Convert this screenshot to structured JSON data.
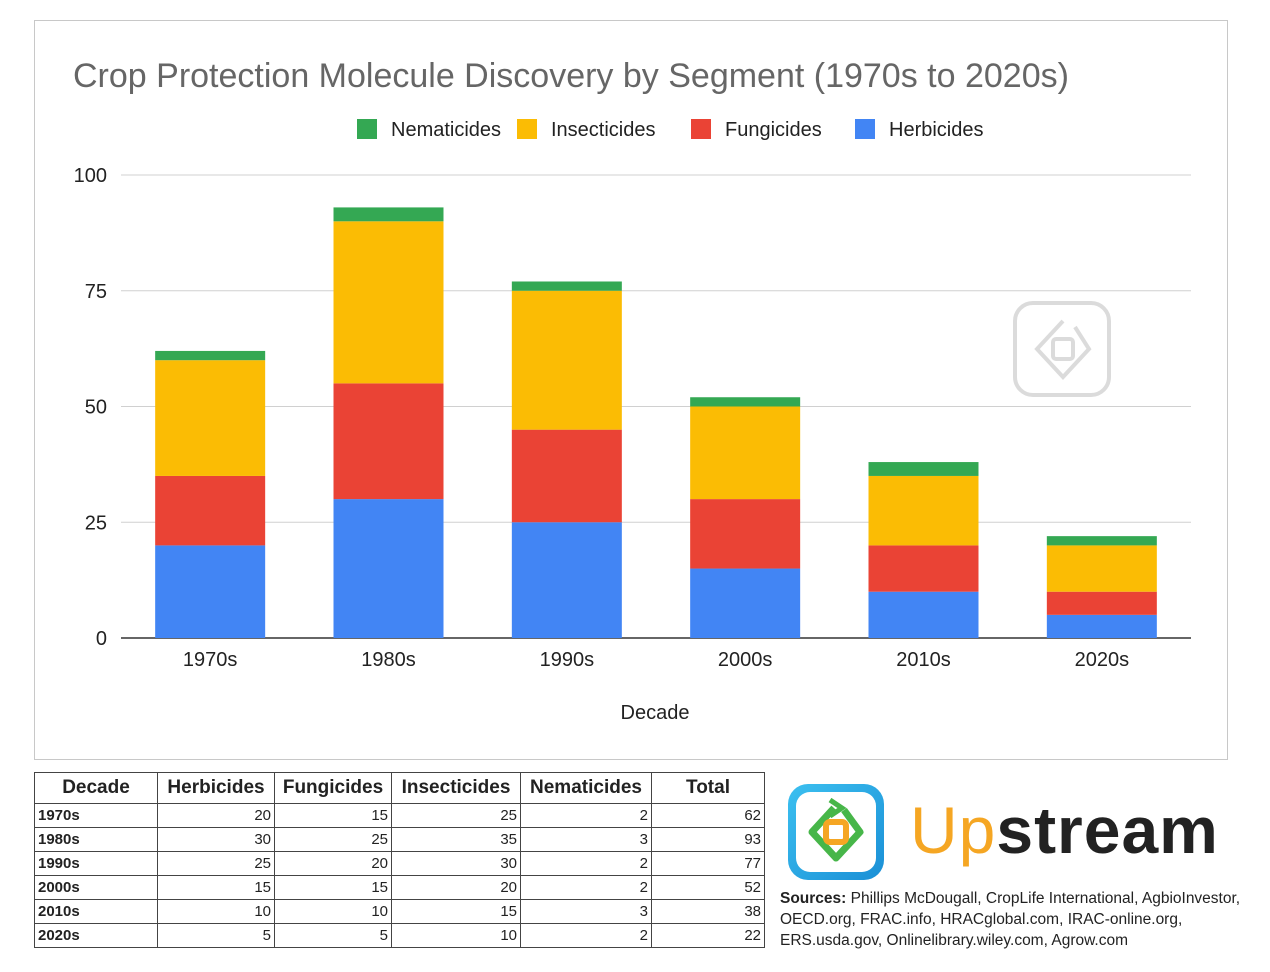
{
  "chart_data": {
    "type": "bar",
    "stacked": true,
    "title": "Crop Protection Molecule Discovery by Segment (1970s to 2020s)",
    "xlabel": "Decade",
    "ylabel": "",
    "ylim": [
      0,
      100
    ],
    "yticks": [
      0,
      25,
      50,
      75,
      100
    ],
    "grid": true,
    "legend_position": "top",
    "categories": [
      "1970s",
      "1980s",
      "1990s",
      "2000s",
      "2010s",
      "2020s"
    ],
    "series": [
      {
        "name": "Herbicides",
        "color": "#4285f4",
        "values": [
          20,
          30,
          25,
          15,
          10,
          5
        ]
      },
      {
        "name": "Fungicides",
        "color": "#ea4335",
        "values": [
          15,
          25,
          20,
          15,
          10,
          5
        ]
      },
      {
        "name": "Insecticides",
        "color": "#fbbc04",
        "values": [
          25,
          35,
          30,
          20,
          15,
          10
        ]
      },
      {
        "name": "Nematicides",
        "color": "#34a853",
        "values": [
          2,
          3,
          2,
          2,
          3,
          2
        ]
      }
    ],
    "legend_order": [
      "Nematicides",
      "Insecticides",
      "Fungicides",
      "Herbicides"
    ]
  },
  "table": {
    "headers": [
      "Decade",
      "Herbicides",
      "Fungicides",
      "Insecticides",
      "Nematicides",
      "Total"
    ],
    "rows": [
      [
        "1970s",
        "20",
        "15",
        "25",
        "2",
        "62"
      ],
      [
        "1980s",
        "30",
        "25",
        "35",
        "3",
        "93"
      ],
      [
        "1990s",
        "25",
        "20",
        "30",
        "2",
        "77"
      ],
      [
        "2000s",
        "15",
        "15",
        "20",
        "2",
        "52"
      ],
      [
        "2010s",
        "10",
        "10",
        "15",
        "3",
        "38"
      ],
      [
        "2020s",
        "5",
        "5",
        "10",
        "2",
        "22"
      ]
    ]
  },
  "brand": {
    "part1": "Up",
    "part2": "stream",
    "color_up": "#f5a623",
    "color_stream": "#222222",
    "logo_colors": {
      "blue": "#1ea7e8",
      "green": "#47b649",
      "orange": "#f5a623"
    }
  },
  "sources": {
    "label": "Sources:",
    "text": "Phillips McDougall, CropLife International, AgbioInvestor, OECD.org, FRAC.info, HRACglobal.com, IRAC-online.org, ERS.usda.gov, Onlinelibrary.wiley.com, Agrow.com"
  }
}
